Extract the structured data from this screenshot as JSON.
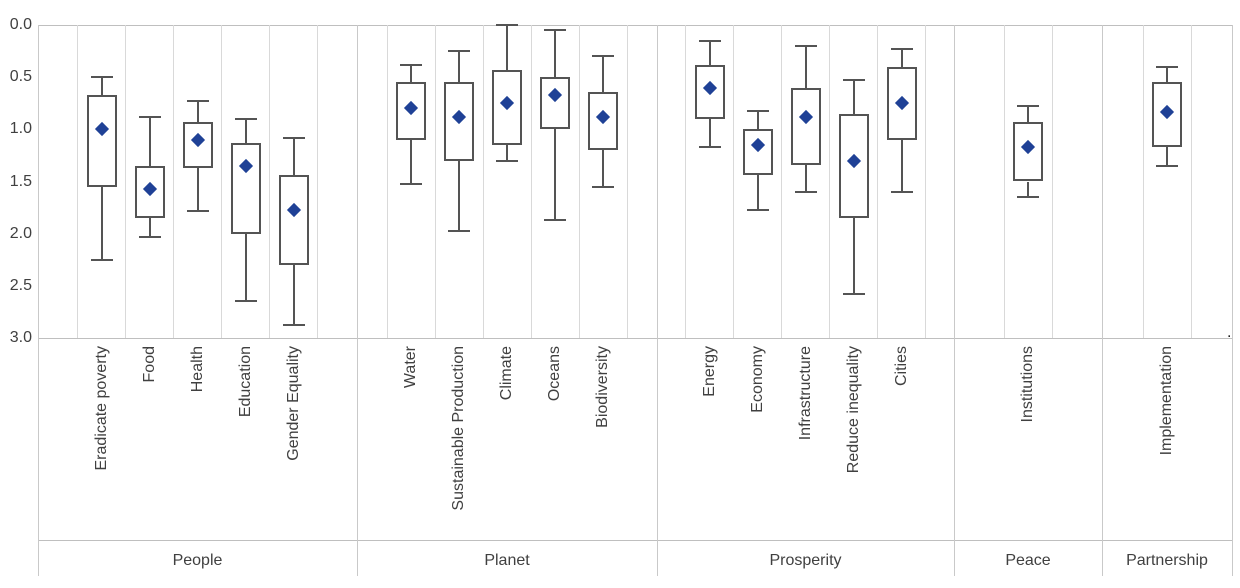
{
  "annotations": {
    "stray_dot": "."
  },
  "chart_data": {
    "type": "boxplot",
    "orientation": "vertical",
    "marker_shape": "diamond",
    "grid": "vertical-only",
    "y_axis": {
      "inverted": true,
      "min": 0,
      "max": 3,
      "tick_labels": [
        "0.0",
        "0.5",
        "1.0",
        "1.5",
        "2.0",
        "2.5",
        "3.0"
      ]
    },
    "groups": [
      {
        "label": "People",
        "categories": [
          {
            "label": "Eradicate poverty",
            "whisker_min": 0.5,
            "q1": 0.67,
            "median": 1.0,
            "q3": 1.55,
            "whisker_max": 2.25
          },
          {
            "label": "Food",
            "whisker_min": 0.88,
            "q1": 1.35,
            "median": 1.57,
            "q3": 1.85,
            "whisker_max": 2.03
          },
          {
            "label": "Health",
            "whisker_min": 0.73,
            "q1": 0.93,
            "median": 1.1,
            "q3": 1.37,
            "whisker_max": 1.78
          },
          {
            "label": "Education",
            "whisker_min": 0.9,
            "q1": 1.13,
            "median": 1.35,
            "q3": 2.0,
            "whisker_max": 2.65
          },
          {
            "label": "Gender Equality",
            "whisker_min": 1.08,
            "q1": 1.44,
            "median": 1.77,
            "q3": 2.3,
            "whisker_max": 2.88
          }
        ]
      },
      {
        "label": "Planet",
        "categories": [
          {
            "label": "Water",
            "whisker_min": 0.38,
            "q1": 0.55,
            "median": 0.8,
            "q3": 1.1,
            "whisker_max": 1.52
          },
          {
            "label": "Sustainable Production",
            "whisker_min": 0.25,
            "q1": 0.55,
            "median": 0.88,
            "q3": 1.3,
            "whisker_max": 1.97
          },
          {
            "label": "Climate",
            "whisker_min": 0.0,
            "q1": 0.43,
            "median": 0.75,
            "q3": 1.15,
            "whisker_max": 1.3
          },
          {
            "label": "Oceans",
            "whisker_min": 0.05,
            "q1": 0.5,
            "median": 0.67,
            "q3": 1.0,
            "whisker_max": 1.87
          },
          {
            "label": "Biodiversity",
            "whisker_min": 0.3,
            "q1": 0.64,
            "median": 0.88,
            "q3": 1.2,
            "whisker_max": 1.55
          }
        ]
      },
      {
        "label": "Prosperity",
        "categories": [
          {
            "label": "Energy",
            "whisker_min": 0.15,
            "q1": 0.38,
            "median": 0.6,
            "q3": 0.9,
            "whisker_max": 1.17
          },
          {
            "label": "Economy",
            "whisker_min": 0.82,
            "q1": 1.0,
            "median": 1.15,
            "q3": 1.44,
            "whisker_max": 1.77
          },
          {
            "label": "Infrastructure",
            "whisker_min": 0.2,
            "q1": 0.6,
            "median": 0.88,
            "q3": 1.34,
            "whisker_max": 1.6
          },
          {
            "label": "Reduce inequality",
            "whisker_min": 0.53,
            "q1": 0.85,
            "median": 1.3,
            "q3": 1.85,
            "whisker_max": 2.58
          },
          {
            "label": "Cities",
            "whisker_min": 0.23,
            "q1": 0.4,
            "median": 0.75,
            "q3": 1.1,
            "whisker_max": 1.6
          }
        ]
      },
      {
        "label": "Peace",
        "categories": [
          {
            "label": "Institutions",
            "whisker_min": 0.78,
            "q1": 0.93,
            "median": 1.17,
            "q3": 1.5,
            "whisker_max": 1.65
          }
        ]
      },
      {
        "label": "Partnership",
        "categories": [
          {
            "label": "Implementation",
            "whisker_min": 0.4,
            "q1": 0.55,
            "median": 0.83,
            "q3": 1.17,
            "whisker_max": 1.35
          }
        ]
      }
    ],
    "colors": {
      "box_border": "#545454",
      "median_marker": "#1F4196",
      "gridline": "#D9D9D9",
      "separator": "#C9C9C9",
      "axis_line": "#BFBFBF",
      "text": "#404040",
      "background": "#FFFFFF"
    }
  }
}
